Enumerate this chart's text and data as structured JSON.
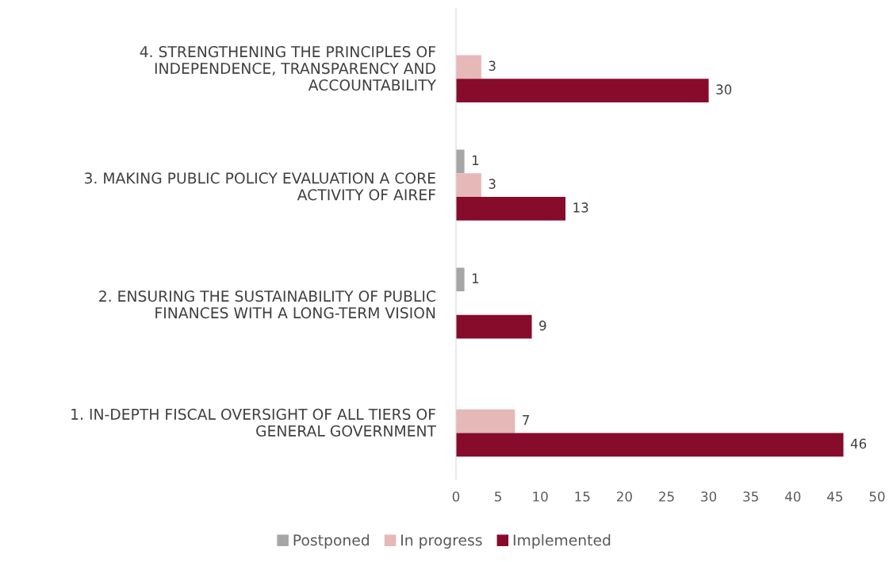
{
  "chart_data": {
    "type": "bar",
    "orientation": "horizontal",
    "categories": [
      "4. STRENGTHENING THE PRINCIPLES OF\nINDEPENDENCE, TRANSPARENCY AND\nACCOUNTABILITY",
      "3. MAKING PUBLIC POLICY EVALUATION A CORE\nACTIVITY OF AIREF",
      "2. ENSURING THE SUSTAINABILITY OF PUBLIC\nFINANCES WITH A LONG-TERM VISION",
      "1. IN-DEPTH FISCAL OVERSIGHT OF ALL TIERS OF\nGENERAL GOVERNMENT"
    ],
    "series": [
      {
        "name": "Postponed",
        "color": "#a6a6a6",
        "values": [
          null,
          1,
          1,
          null
        ]
      },
      {
        "name": "In progress",
        "color": "#e6b8b7",
        "values": [
          3,
          3,
          null,
          7
        ]
      },
      {
        "name": "Implemented",
        "color": "#870b2b",
        "values": [
          30,
          13,
          9,
          46
        ]
      }
    ],
    "xlim": [
      0,
      50
    ],
    "xticks": [
      0,
      5,
      10,
      15,
      20,
      25,
      30,
      35,
      40,
      45,
      50
    ],
    "data_labels": true,
    "grid": false,
    "legend": "bottom"
  }
}
